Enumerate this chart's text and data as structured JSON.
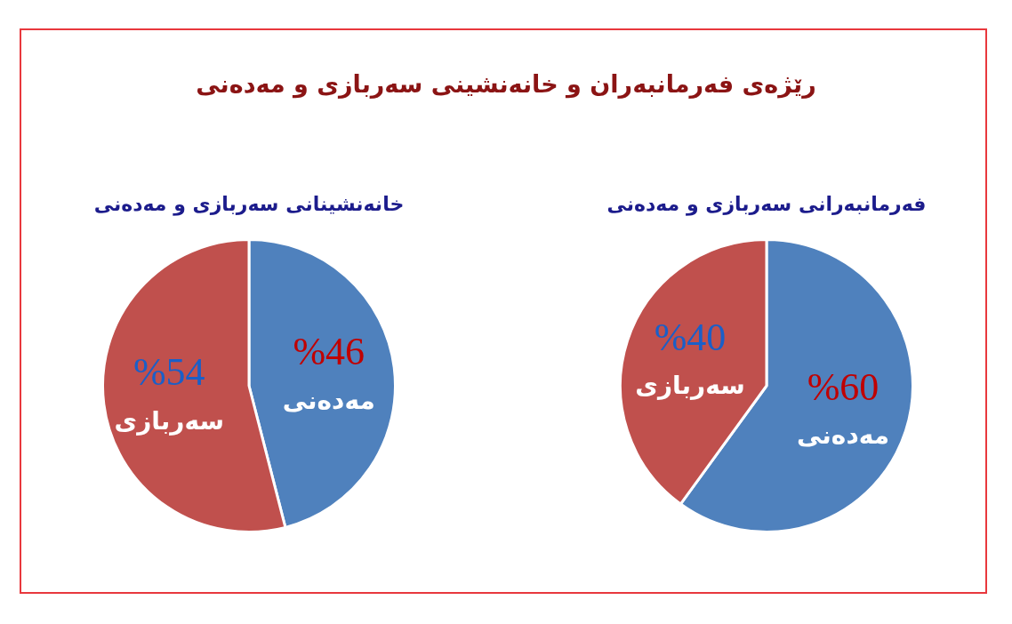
{
  "chart_data": [
    {
      "type": "other",
      "title": "رێژەی فەرمانبەران و خانەنشینی سەربازی و مەدەنی"
    },
    {
      "type": "pie",
      "title": "فەرمانبەرانی سەربازی و مەدەنی",
      "categories": [
        "مەدەنی",
        "سەربازی"
      ],
      "values": [
        60,
        40
      ],
      "colors": [
        "#4f81bd",
        "#c0504d"
      ],
      "value_labels": [
        "%60",
        "%40"
      ]
    },
    {
      "type": "pie",
      "title": "خانەنشینانی سەربازی و مەدەنی",
      "categories": [
        "مەدەنی",
        "سەربازی"
      ],
      "values": [
        46,
        54
      ],
      "colors": [
        "#4f81bd",
        "#c0504d"
      ],
      "value_labels": [
        "%46",
        "%54"
      ]
    }
  ]
}
